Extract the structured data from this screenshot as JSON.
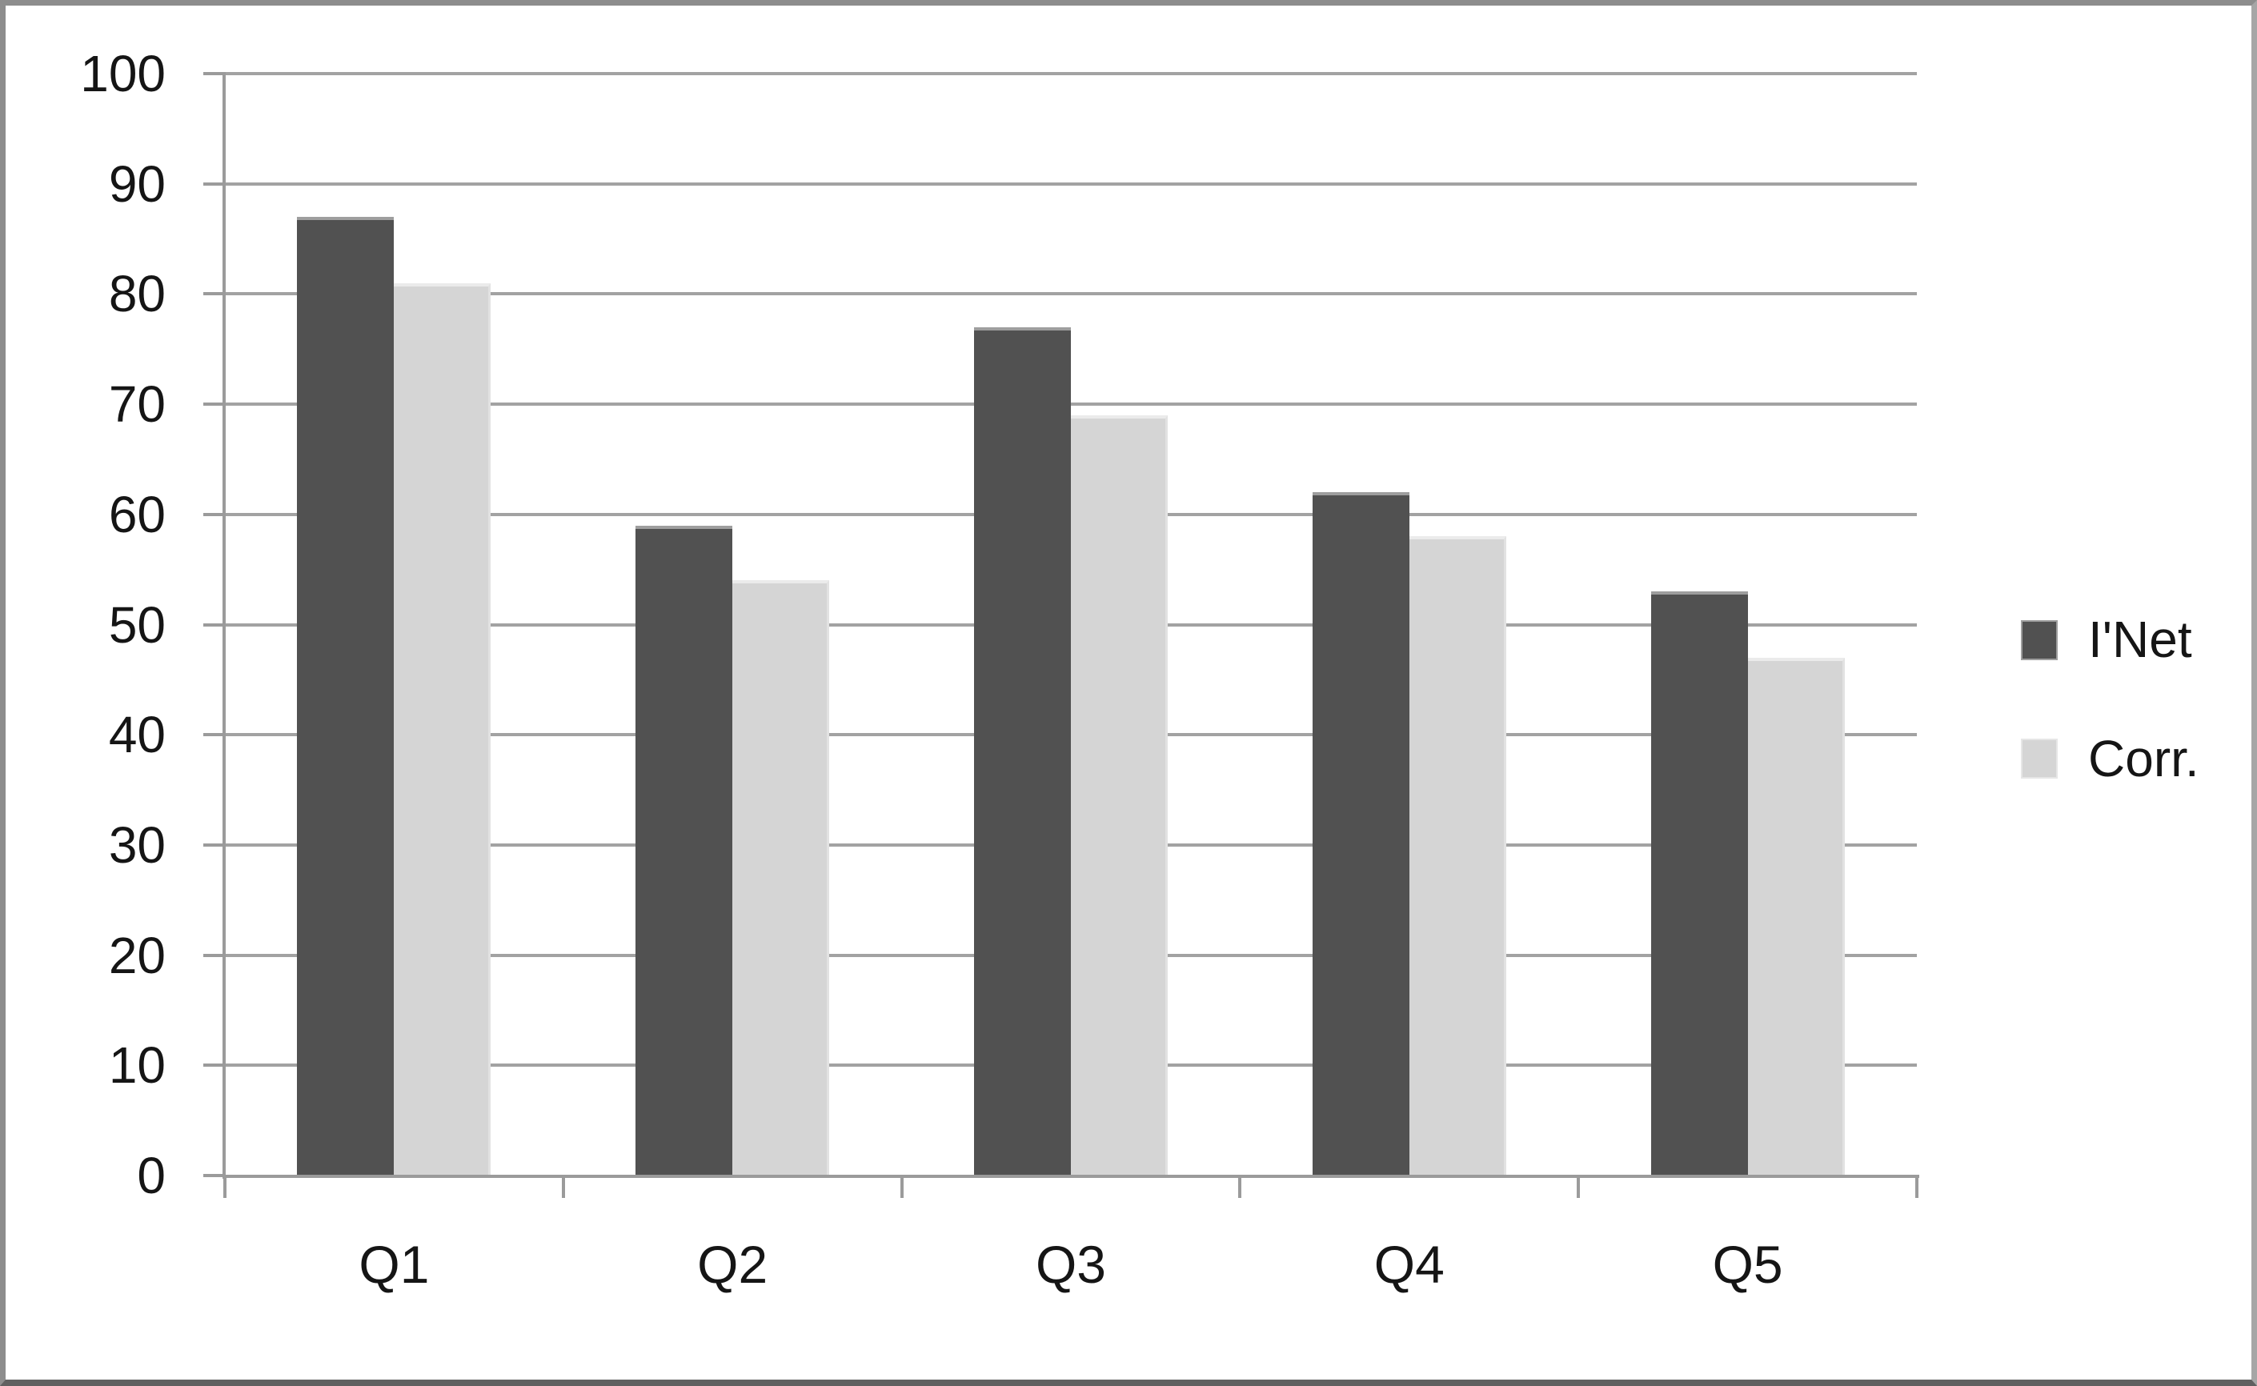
{
  "chart_data": {
    "type": "bar",
    "title": "",
    "categories": [
      "Q1",
      "Q2",
      "Q3",
      "Q4",
      "Q5"
    ],
    "yticks": [
      100,
      90,
      80,
      70,
      60,
      50,
      40,
      30,
      20,
      10,
      0
    ],
    "ylim": [
      0,
      100
    ],
    "ytick_step": 10,
    "grid": true,
    "legend_position": "right",
    "series": [
      {
        "name": "I'Net",
        "color": "#515151",
        "values": [
          87,
          59,
          77,
          62,
          53
        ]
      },
      {
        "name": "Corr.",
        "color": "#d5d5d5",
        "values": [
          81,
          54,
          69,
          58,
          47
        ]
      }
    ]
  },
  "colors": {
    "background": "#ffffff",
    "gridline": "#a2a2a2",
    "axis": "#9b9b9b",
    "text": "#151515",
    "frame": "#8d8d8d"
  }
}
